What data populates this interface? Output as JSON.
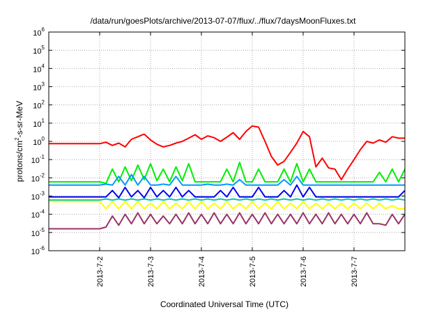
{
  "chart_data": {
    "type": "line",
    "title": "/data/run/goesPlots/archive/2013-07-07/flux/../flux/7daysMoonFluxes.txt",
    "xlabel": "Coordinated Universal Time (UTC)",
    "ylabel": "protons/cm2-s-sr-MeV",
    "y_scale": "log",
    "ylim": [
      1e-06,
      1000000.0
    ],
    "xlim": [
      "2013-07-01",
      "2013-07-08"
    ],
    "x_ticks": [
      "2013-7-2",
      "2013-7-3",
      "2013-7-4",
      "2013-7-5",
      "2013-7-6",
      "2013-7-7"
    ],
    "y_tick_exponents": [
      -6,
      -5,
      -4,
      -3,
      -2,
      -1,
      0,
      1,
      2,
      3,
      4,
      5,
      6
    ],
    "grid": true,
    "legend": "none",
    "x": [
      "2013-07-01",
      "2013-07-01 12:00",
      "2013-07-02",
      "2013-07-02 03:00",
      "2013-07-02 06:00",
      "2013-07-02 09:00",
      "2013-07-02 12:00",
      "2013-07-02 15:00",
      "2013-07-02 18:00",
      "2013-07-02 21:00",
      "2013-07-03",
      "2013-07-03 03:00",
      "2013-07-03 06:00",
      "2013-07-03 09:00",
      "2013-07-03 12:00",
      "2013-07-03 15:00",
      "2013-07-03 18:00",
      "2013-07-03 21:00",
      "2013-07-04",
      "2013-07-04 03:00",
      "2013-07-04 06:00",
      "2013-07-04 09:00",
      "2013-07-04 12:00",
      "2013-07-04 15:00",
      "2013-07-04 18:00",
      "2013-07-04 21:00",
      "2013-07-05",
      "2013-07-05 03:00",
      "2013-07-05 06:00",
      "2013-07-05 09:00",
      "2013-07-05 12:00",
      "2013-07-05 15:00",
      "2013-07-05 18:00",
      "2013-07-05 21:00",
      "2013-07-06",
      "2013-07-06 03:00",
      "2013-07-06 06:00",
      "2013-07-06 09:00",
      "2013-07-06 12:00",
      "2013-07-06 15:00",
      "2013-07-06 18:00",
      "2013-07-06 21:00",
      "2013-07-07",
      "2013-07-07 03:00",
      "2013-07-07 06:00",
      "2013-07-07 09:00",
      "2013-07-07 12:00",
      "2013-07-07 15:00",
      "2013-07-07 18:00",
      "2013-07-07 21:00",
      "2013-07-08"
    ],
    "series": [
      {
        "color": "#ff0000",
        "values": [
          0.75,
          0.75,
          0.75,
          0.9,
          0.6,
          0.8,
          0.5,
          1.3,
          1.8,
          2.5,
          1.2,
          0.7,
          0.5,
          0.6,
          0.8,
          1.0,
          1.5,
          2.3,
          1.3,
          2.0,
          1.6,
          1.0,
          1.7,
          3.0,
          1.3,
          3.5,
          7.0,
          6.0,
          1.0,
          0.15,
          0.05,
          0.08,
          0.25,
          0.8,
          3.5,
          1.8,
          0.04,
          0.12,
          0.035,
          0.03,
          0.008,
          0.03,
          0.1,
          0.35,
          1.0,
          0.8,
          1.2,
          0.9,
          1.8,
          1.5,
          1.5
        ]
      },
      {
        "color": "#00ee00",
        "values": [
          0.006,
          0.006,
          0.006,
          0.005,
          0.03,
          0.006,
          0.04,
          0.007,
          0.05,
          0.008,
          0.06,
          0.007,
          0.03,
          0.006,
          0.04,
          0.007,
          0.06,
          0.006,
          0.006,
          0.006,
          0.006,
          0.006,
          0.03,
          0.006,
          0.07,
          0.006,
          0.006,
          0.03,
          0.006,
          0.006,
          0.006,
          0.03,
          0.006,
          0.06,
          0.006,
          0.03,
          0.006,
          0.006,
          0.006,
          0.006,
          0.006,
          0.006,
          0.006,
          0.006,
          0.006,
          0.006,
          0.02,
          0.006,
          0.03,
          0.006,
          0.03
        ]
      },
      {
        "color": "#0099ff",
        "values": [
          0.004,
          0.004,
          0.004,
          0.0045,
          0.004,
          0.012,
          0.004,
          0.015,
          0.004,
          0.012,
          0.004,
          0.004,
          0.0045,
          0.004,
          0.012,
          0.004,
          0.004,
          0.004,
          0.004,
          0.0045,
          0.004,
          0.004,
          0.0045,
          0.004,
          0.008,
          0.004,
          0.004,
          0.004,
          0.004,
          0.004,
          0.004,
          0.008,
          0.004,
          0.012,
          0.004,
          0.004,
          0.004,
          0.004,
          0.004,
          0.004,
          0.004,
          0.004,
          0.004,
          0.004,
          0.004,
          0.004,
          0.004,
          0.004,
          0.004,
          0.004,
          0.004
        ]
      },
      {
        "color": "#0000ee",
        "values": [
          0.0009,
          0.0009,
          0.0009,
          0.0009,
          0.002,
          0.0008,
          0.003,
          0.0009,
          0.002,
          0.0008,
          0.003,
          0.0009,
          0.002,
          0.0009,
          0.003,
          0.0009,
          0.002,
          0.0009,
          0.0009,
          0.0009,
          0.0009,
          0.002,
          0.0009,
          0.003,
          0.0009,
          0.0009,
          0.0009,
          0.003,
          0.0009,
          0.0009,
          0.0009,
          0.002,
          0.0009,
          0.004,
          0.0009,
          0.003,
          0.0009,
          0.0009,
          0.0009,
          0.0009,
          0.0009,
          0.0009,
          0.0009,
          0.0009,
          0.0009,
          0.0009,
          0.0009,
          0.0009,
          0.0009,
          0.0009,
          0.002
        ]
      },
      {
        "color": "#00c8b4",
        "values": [
          0.0006,
          0.0006,
          0.0006,
          0.0007,
          0.0006,
          0.0007,
          0.0006,
          0.0007,
          0.0006,
          0.0007,
          0.0006,
          0.0007,
          0.0006,
          0.0007,
          0.0006,
          0.0007,
          0.0006,
          0.0007,
          0.0006,
          0.0007,
          0.0006,
          0.0007,
          0.0006,
          0.0007,
          0.0006,
          0.0007,
          0.0006,
          0.0007,
          0.0006,
          0.0007,
          0.0006,
          0.0007,
          0.0006,
          0.0007,
          0.0006,
          0.0007,
          0.0006,
          0.0007,
          0.0006,
          0.0007,
          0.0006,
          0.0007,
          0.0006,
          0.0007,
          0.0006,
          0.0007,
          0.0006,
          0.0007,
          0.0006,
          0.0007,
          0.0006
        ]
      },
      {
        "color": "#ffff00",
        "values": [
          0.0005,
          0.0005,
          0.0005,
          0.0002,
          0.0005,
          0.0002,
          0.0005,
          0.0002,
          0.0005,
          0.0002,
          0.0004,
          0.0002,
          0.0005,
          0.0002,
          0.0004,
          0.0002,
          0.0005,
          0.0002,
          0.0005,
          0.0002,
          0.0004,
          0.0002,
          0.0005,
          0.0002,
          0.0004,
          0.0002,
          0.0005,
          0.0002,
          0.0004,
          0.0002,
          0.0005,
          0.0002,
          0.0004,
          0.0002,
          0.0005,
          0.0002,
          0.0004,
          0.0002,
          0.0004,
          0.0002,
          0.0004,
          0.0002,
          0.0004,
          0.0002,
          0.0004,
          0.0002,
          0.0004,
          0.0002,
          0.0003,
          0.0002,
          0.0002
        ]
      },
      {
        "color": "#993366",
        "values": [
          1.6e-05,
          1.6e-05,
          1.6e-05,
          2e-05,
          8e-05,
          2.5e-05,
          0.0001,
          3e-05,
          0.00012,
          3e-05,
          0.0001,
          3e-05,
          8e-05,
          3e-05,
          0.0001,
          3e-05,
          0.00012,
          3e-05,
          0.0001,
          3e-05,
          0.00012,
          3e-05,
          0.0001,
          3e-05,
          0.00012,
          3e-05,
          0.0001,
          3e-05,
          0.00012,
          3e-05,
          0.0001,
          3e-05,
          0.0001,
          3e-05,
          0.00012,
          3e-05,
          0.0001,
          3e-05,
          0.00012,
          3e-05,
          0.0001,
          3e-05,
          0.0001,
          3e-05,
          0.00012,
          3e-05,
          3e-05,
          2.5e-05,
          0.0001,
          3e-05,
          0.0001
        ]
      }
    ]
  }
}
